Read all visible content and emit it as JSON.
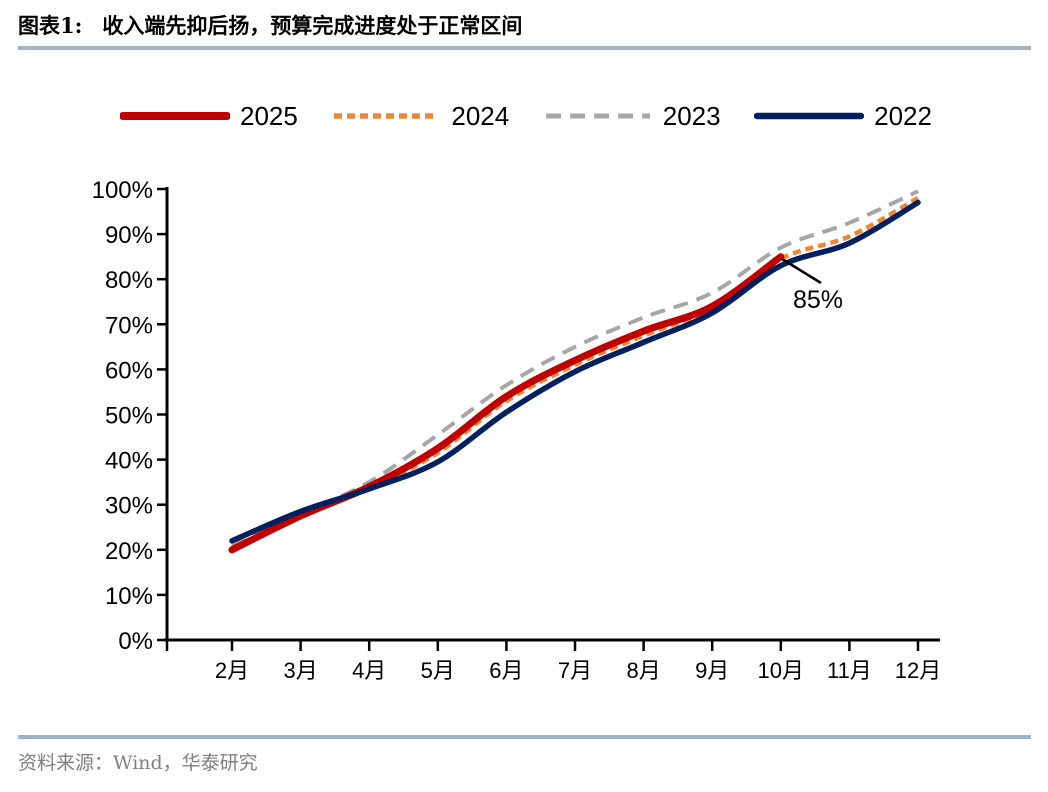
{
  "title": {
    "label": "图表1:",
    "text": "收入端先抑后扬，预算完成进度处于正常区间"
  },
  "source": "资料来源：Wind，华泰研究",
  "annotation": {
    "text": "85%",
    "month": "10月",
    "value": 85
  },
  "divider_color": "#9FB3C8",
  "chart_data": {
    "type": "line",
    "title": "收入端先抑后扬，预算完成进度处于正常区间",
    "xlabel": "",
    "ylabel": "",
    "categories": [
      "2月",
      "3月",
      "4月",
      "5月",
      "6月",
      "7月",
      "8月",
      "9月",
      "10月",
      "11月",
      "12月"
    ],
    "y_tick_labels": [
      "0%",
      "10%",
      "20%",
      "30%",
      "40%",
      "50%",
      "60%",
      "70%",
      "80%",
      "90%",
      "100%"
    ],
    "ylim": [
      0,
      100
    ],
    "y_tick_step": 10,
    "grid": false,
    "legend_position": "top",
    "axis_color": "#000000",
    "series": [
      {
        "name": "2025",
        "color": "#C00000",
        "style": "solid",
        "width": 7,
        "values": [
          20,
          27.5,
          34,
          42.5,
          54,
          62,
          68.5,
          74,
          85
        ]
      },
      {
        "name": "2024",
        "color": "#EF8635",
        "style": "dashed",
        "width": 4.5,
        "values": [
          20.5,
          27.5,
          33.5,
          41.5,
          53,
          61,
          67.5,
          73.5,
          84.5,
          89.5,
          98
        ]
      },
      {
        "name": "2023",
        "color": "#A6A6A6",
        "style": "dashed-long",
        "width": 4,
        "values": [
          21,
          28,
          35,
          45.5,
          56.5,
          65,
          71.5,
          77,
          87,
          92.5,
          99.5
        ]
      },
      {
        "name": "2022",
        "color": "#002060",
        "style": "solid",
        "width": 5.5,
        "values": [
          22,
          28.5,
          33.5,
          39.5,
          50.5,
          59.5,
          66,
          72.5,
          83,
          88,
          97
        ]
      }
    ]
  }
}
